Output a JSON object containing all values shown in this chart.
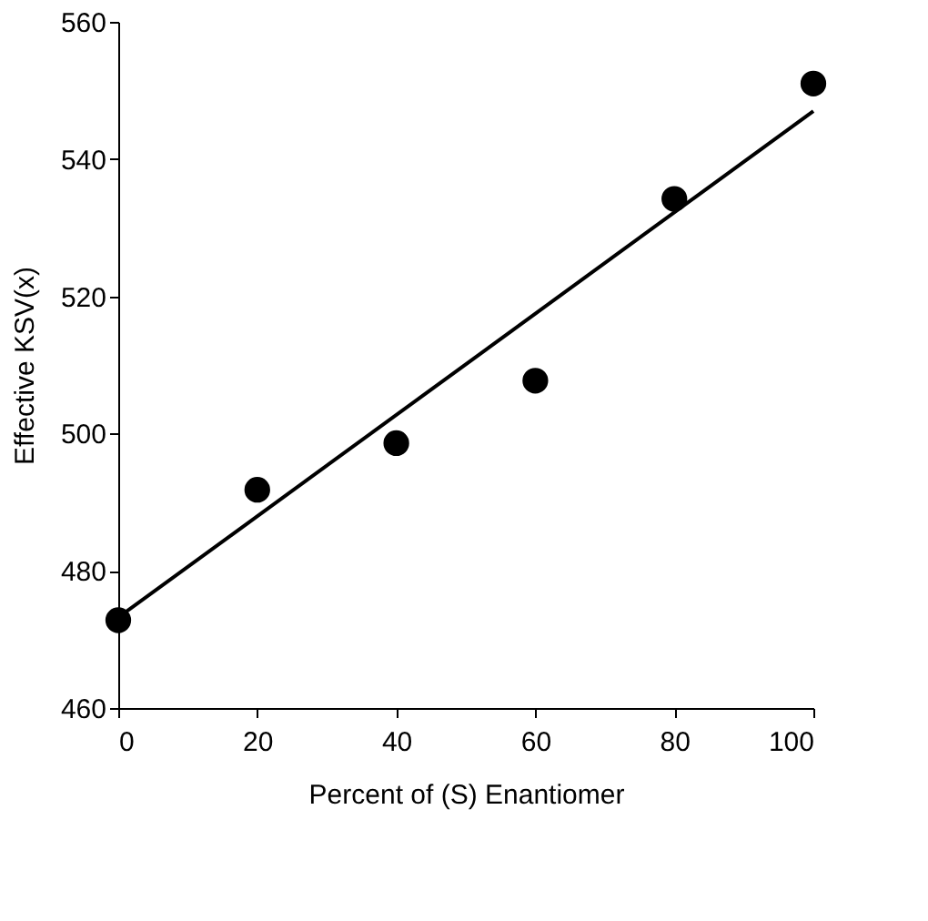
{
  "chart_data": {
    "type": "scatter",
    "xlabel": "Percent of (S) Enantiomer",
    "ylabel": "Effective KSV(x)",
    "xlim": [
      0,
      100
    ],
    "xticks": [
      0,
      20,
      40,
      60,
      80,
      100
    ],
    "ylim": [
      460,
      560
    ],
    "yticks": [
      460,
      480,
      500,
      520,
      540,
      560
    ],
    "series": [
      {
        "color": "#000000",
        "marker": "circle",
        "x": [
          0,
          20,
          40,
          60,
          80,
          100
        ],
        "values": [
          472.8,
          491.8,
          498.6,
          507.7,
          534.2,
          551.0
        ]
      },
      {
        "type": "line",
        "color": "#000000",
        "x": [
          0,
          100
        ],
        "values": [
          473.2,
          547.0
        ],
        "line_style": "solid",
        "marker": "none"
      }
    ]
  }
}
